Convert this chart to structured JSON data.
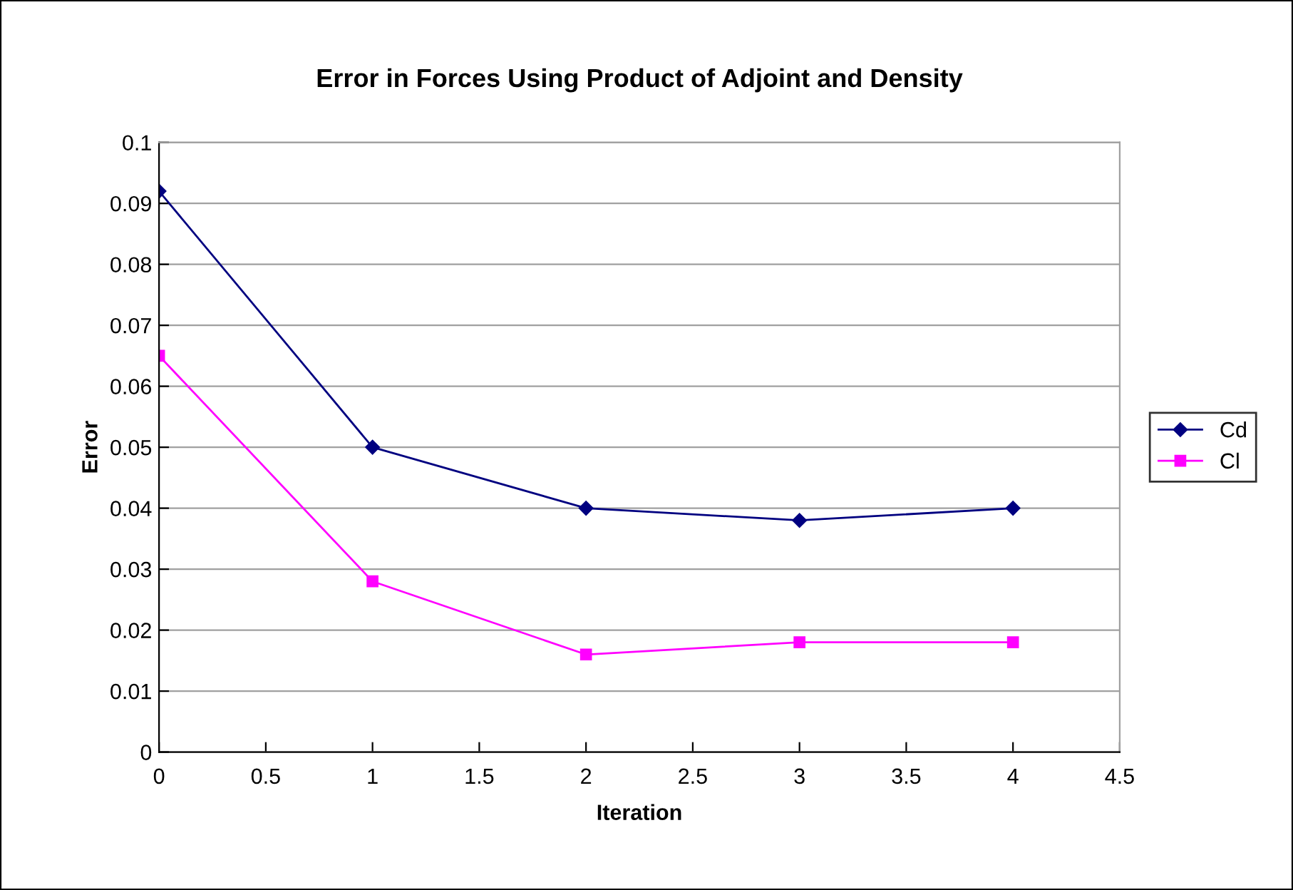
{
  "chart_data": {
    "type": "line",
    "title": "Error in Forces Using Product of Adjoint and Density",
    "xlabel": "Iteration",
    "ylabel": "Error",
    "x": [
      0,
      1,
      2,
      3,
      4
    ],
    "series": [
      {
        "name": "Cd",
        "color": "#000080",
        "marker": "diamond",
        "values": [
          0.092,
          0.05,
          0.04,
          0.038,
          0.04
        ]
      },
      {
        "name": "Cl",
        "color": "#ff00ff",
        "marker": "square",
        "values": [
          0.065,
          0.028,
          0.016,
          0.018,
          0.018
        ]
      }
    ],
    "xlim": [
      0,
      4.5
    ],
    "xticks": [
      0,
      0.5,
      1,
      1.5,
      2,
      2.5,
      3,
      3.5,
      4,
      4.5
    ],
    "ylim": [
      0,
      0.1
    ],
    "yticks": [
      0,
      0.01,
      0.02,
      0.03,
      0.04,
      0.05,
      0.06,
      0.07,
      0.08,
      0.09,
      0.1
    ],
    "grid": "y",
    "legend": "right",
    "line_style": "solid"
  }
}
